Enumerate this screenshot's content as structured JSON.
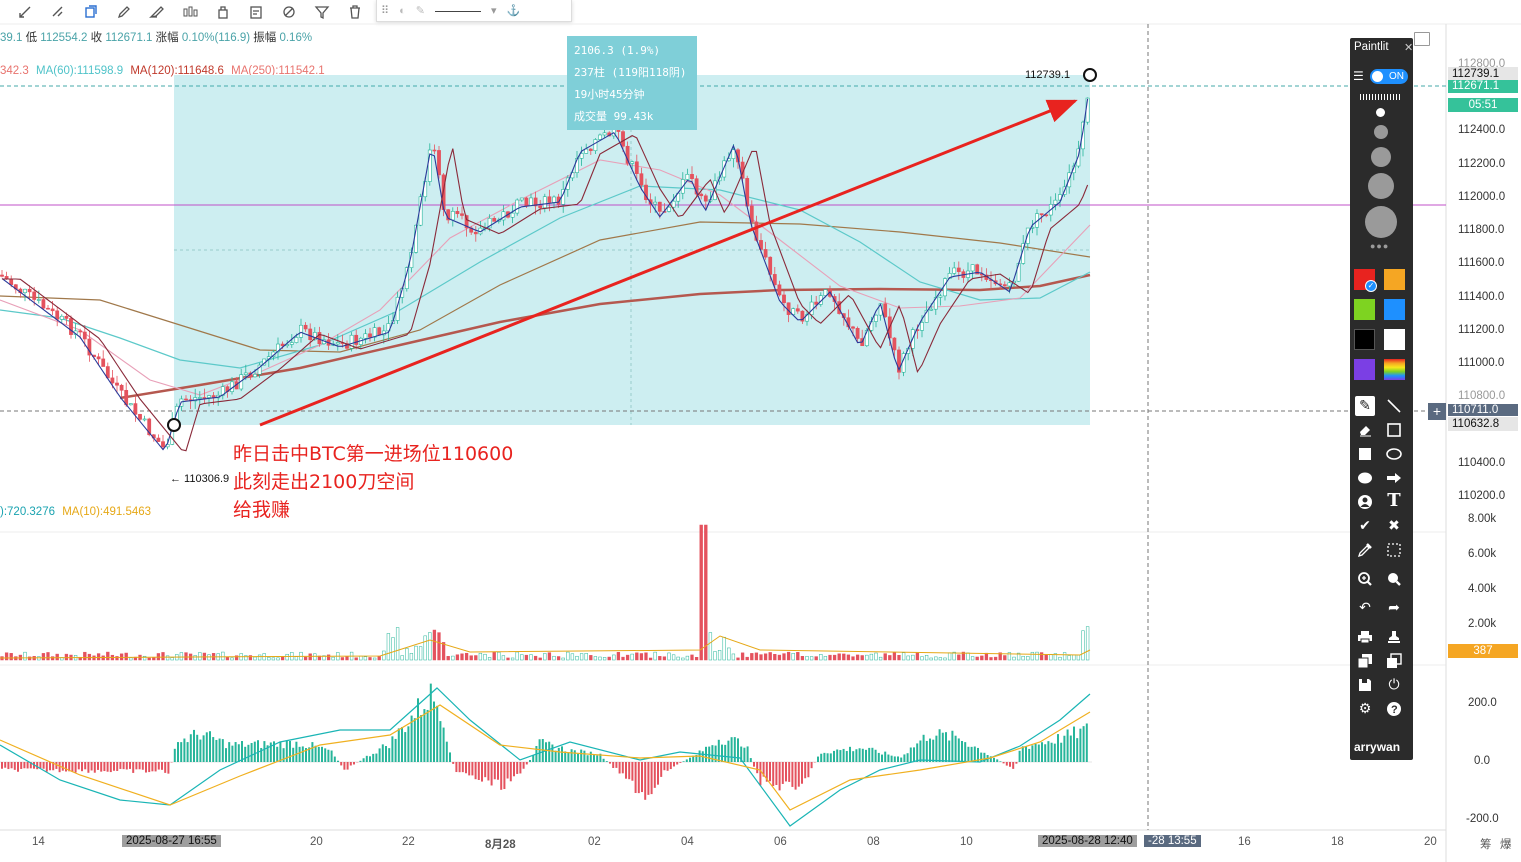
{
  "toolbar": {
    "icons": [
      "draw-icon",
      "magnet-icon",
      "copy-icon",
      "pencil-icon",
      "brush-icon",
      "candles-icon",
      "lock-icon",
      "notes-icon",
      "measure-icon",
      "filter-icon",
      "trash-icon"
    ]
  },
  "floating_toolbar": {
    "icons": [
      "drag-icon",
      "settings-icon",
      "line-color-icon",
      "line-style-icon",
      "template-icon"
    ]
  },
  "legend": {
    "ohlc": {
      "high_tail": "39.1",
      "low_label": "低",
      "low": "112554.2",
      "close_label": "收",
      "close": "112671.1",
      "change_label": "涨幅",
      "change": "0.10%(116.9)",
      "amplitude_label": "振幅",
      "amplitude": "0.16%"
    },
    "ma": [
      {
        "text": "342.3",
        "color": "#e8736e"
      },
      {
        "text": "MA(60):111598.9",
        "color": "#4fc3c9"
      },
      {
        "text": "MA(120):111648.6",
        "color": "#e8736e"
      },
      {
        "text": "MA(250):111542.1",
        "color": "#e8736e"
      }
    ],
    "volume": [
      {
        "text": "):720.3276",
        "color": "#1aa3b0"
      },
      {
        "text": "MA(10):491.5463",
        "color": "#e6a817"
      }
    ]
  },
  "price_axis": {
    "labels": [
      "112800.0",
      "112400.0",
      "112200.0",
      "112000.0",
      "111800.0",
      "111600.0",
      "111400.0",
      "111200.0",
      "111000.0",
      "110800.0",
      "110400.0",
      "110200.0"
    ],
    "tags": {
      "high": "112739.1",
      "current": "112671.1",
      "countdown": "05:51",
      "cursor": "110711.0",
      "low_box": "110632.8"
    }
  },
  "volume_axis": {
    "labels": [
      "8.00k",
      "6.00k",
      "4.00k",
      "2.00k"
    ],
    "tag": "387"
  },
  "macd_axis": {
    "labels": [
      "200.0",
      "0.0",
      "-200.0"
    ]
  },
  "time_axis": {
    "labels": [
      "14",
      "20",
      "22",
      "8月28",
      "02",
      "04",
      "06",
      "08",
      "10",
      "16",
      "18",
      "20"
    ],
    "start_tag": "2025-08-27 16:55",
    "end_tag": "2025-08-28 12:40",
    "cursor_tag": "-28 13:55",
    "corner": [
      "筹",
      "爆"
    ]
  },
  "chart_marks": {
    "high_marker": "112739.1",
    "low_marker": "← 110306.9"
  },
  "infobox": {
    "lines": [
      "2106.3 (1.9%)",
      "237柱 (119阳118阴)",
      "19小时45分钟",
      "成交量  99.43k"
    ]
  },
  "annotation": {
    "lines": [
      "昨日击中BTC第一进场位110600",
      "此刻走出2100刀空间",
      "给我赚"
    ]
  },
  "paintlit": {
    "title": "Paintlit",
    "close": "✕",
    "toggle": "ON",
    "user": "arrywan",
    "colors": [
      "#e8231f",
      "#f5a623",
      "#7ed321",
      "#1e90ff",
      "#000000",
      "#ffffff",
      "#7b3fe4",
      "rainbow"
    ],
    "tools": [
      "pencil-icon",
      "line-icon",
      "eraser-icon",
      "rectangle-icon",
      "filled-rect-icon",
      "ellipse-icon",
      "filled-ellipse-icon",
      "arrow-icon",
      "person-icon",
      "text-icon",
      "check-icon",
      "cross-icon",
      "eyedropper-icon",
      "select-icon",
      "zoom-in-icon",
      "zoom-icon",
      "undo-icon",
      "redo-icon",
      "print-icon",
      "stamp-icon",
      "copy-icon",
      "paste-icon",
      "save-icon",
      "power-icon",
      "settings-icon",
      "help-icon"
    ]
  }
}
